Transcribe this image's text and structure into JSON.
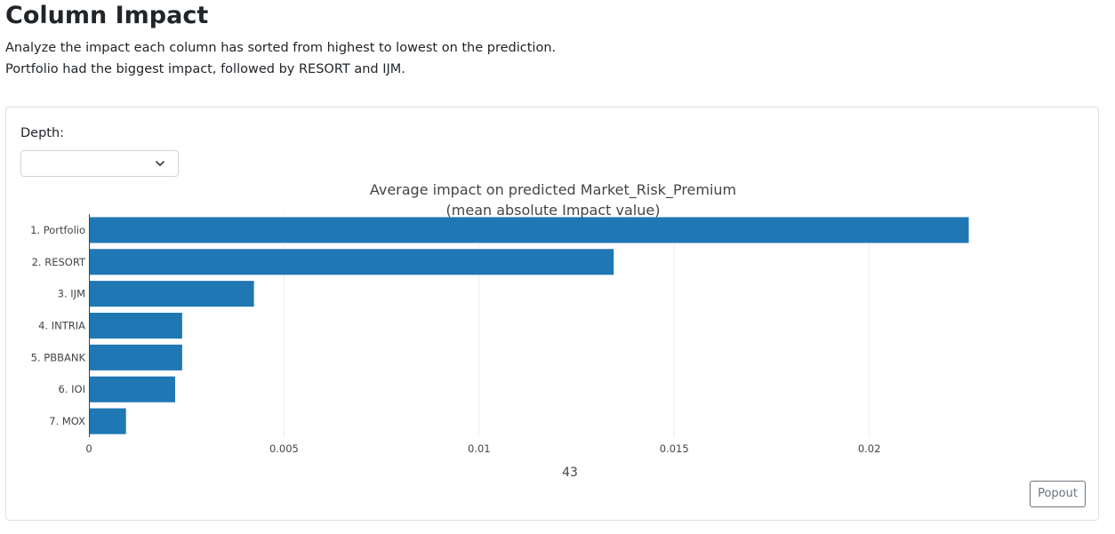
{
  "header": {
    "title": "Column Impact",
    "description_line1": "Analyze the impact each column has sorted from highest to lowest on the prediction.",
    "description_line2": "Portfolio had the biggest impact, followed by RESORT and IJM."
  },
  "controls": {
    "depth_label": "Depth:",
    "depth_value": "",
    "popout_label": "Popout"
  },
  "colors": {
    "bar": "#1f77b4",
    "grid": "#eeeeee",
    "axis": "#444444"
  },
  "chart_data": {
    "type": "bar",
    "orientation": "horizontal",
    "title_line1": "Average impact on predicted Market_Risk_Premium",
    "title_line2": "(mean absolute Impact value)",
    "xlabel": "43",
    "ylabel": "",
    "categories": [
      "1. Portfolio",
      "2. RESORT",
      "3. IJM",
      "4. INTRIA",
      "5. PBBANK",
      "6. IOI",
      "7. MOX"
    ],
    "values": [
      0.02255,
      0.01345,
      0.00423,
      0.00239,
      0.00239,
      0.00221,
      0.00095
    ],
    "xlim": [
      0,
      0.0237
    ],
    "xticks": [
      0,
      0.005,
      0.01,
      0.015,
      0.02
    ],
    "xtick_labels": [
      "0",
      "0.005",
      "0.01",
      "0.015",
      "0.02"
    ],
    "grid": true,
    "legend": "none"
  }
}
